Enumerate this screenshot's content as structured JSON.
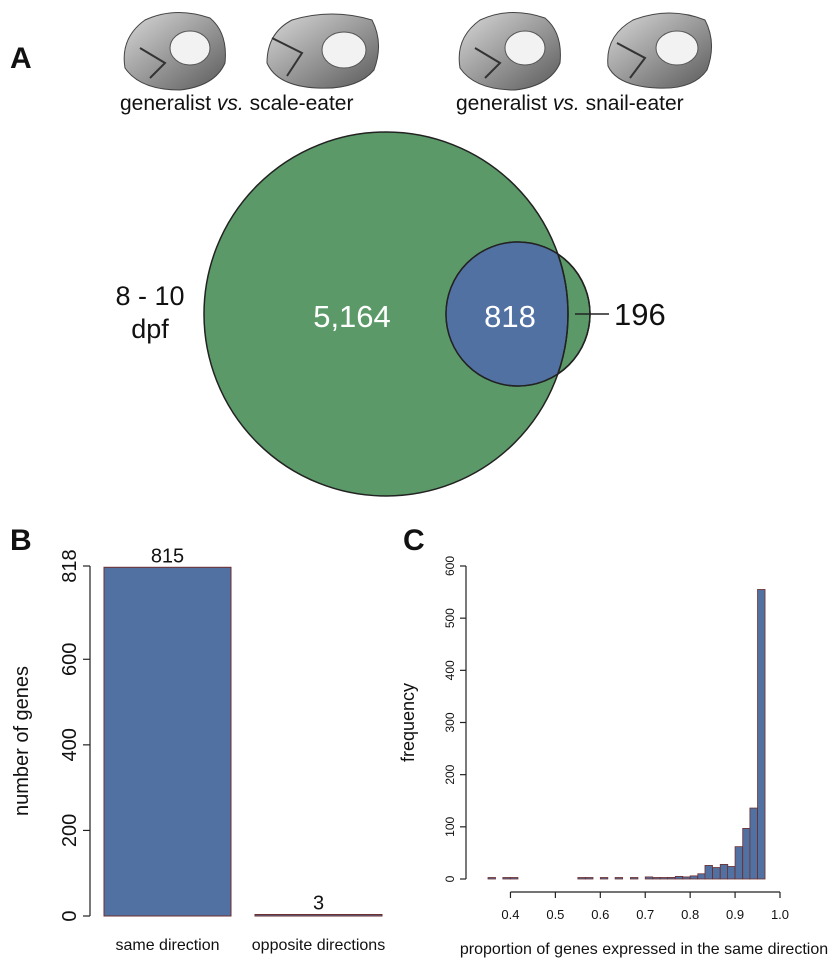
{
  "panel_letters": {
    "a": "A",
    "b": "B",
    "c": "C"
  },
  "comparisons": [
    {
      "left": "generalist",
      "vs": "vs.",
      "right": "scale-eater"
    },
    {
      "left": "generalist",
      "vs": "vs.",
      "right": "snail-eater"
    }
  ],
  "colors": {
    "green": "#5b9a68",
    "blue": "#5271a3",
    "bar_outline": "#6e2f2f"
  },
  "chart_data": [
    {
      "type": "venn",
      "stage_label_line1": "8 - 10",
      "stage_label_line2": "dpf",
      "left_only": "5,164",
      "intersection": "818",
      "right_only": "196",
      "values": {
        "left_only": 5164,
        "intersection": 818,
        "right_only": 196
      }
    },
    {
      "type": "bar",
      "categories": [
        "same direction",
        "opposite directions"
      ],
      "values": [
        815,
        3
      ],
      "value_labels": [
        "815",
        "3"
      ],
      "ylabel": "number of genes",
      "ylim": [
        0,
        818
      ],
      "yticks": [
        "0",
        "200",
        "400",
        "600",
        "818"
      ],
      "ytick_values": [
        0,
        200,
        400,
        600,
        818
      ]
    },
    {
      "type": "histogram",
      "xlabel": "proportion  of genes expressed in the  same direction",
      "ylabel": "frequency",
      "xlim": [
        0.35,
        1.0
      ],
      "ylim": [
        0,
        600
      ],
      "xticks": [
        "0.4",
        "0.5",
        "0.6",
        "0.7",
        "0.8",
        "0.9",
        "1.0"
      ],
      "xtick_values": [
        0.4,
        0.5,
        0.6,
        0.7,
        0.8,
        0.9,
        1.0
      ],
      "yticks": [
        "0",
        "100",
        "200",
        "300",
        "400",
        "500",
        "600"
      ],
      "ytick_values": [
        0,
        100,
        200,
        300,
        400,
        500,
        600
      ],
      "bin_width": 0.0167,
      "bin_starts": [
        0.35,
        0.367,
        0.383,
        0.4,
        0.417,
        0.433,
        0.45,
        0.467,
        0.483,
        0.5,
        0.517,
        0.533,
        0.55,
        0.567,
        0.583,
        0.6,
        0.617,
        0.633,
        0.65,
        0.667,
        0.683,
        0.7,
        0.717,
        0.733,
        0.75,
        0.767,
        0.783,
        0.8,
        0.817,
        0.833,
        0.85,
        0.867,
        0.883,
        0.9,
        0.917,
        0.933,
        0.95,
        0.967,
        0.983
      ],
      "counts": [
        2,
        0,
        1,
        2,
        0,
        0,
        0,
        0,
        0,
        0,
        0,
        0,
        1,
        1,
        0,
        1,
        0,
        1,
        0,
        2,
        0,
        4,
        1,
        2,
        3,
        5,
        4,
        6,
        10,
        26,
        22,
        28,
        24,
        62,
        97,
        136,
        555,
        0,
        0
      ]
    }
  ]
}
